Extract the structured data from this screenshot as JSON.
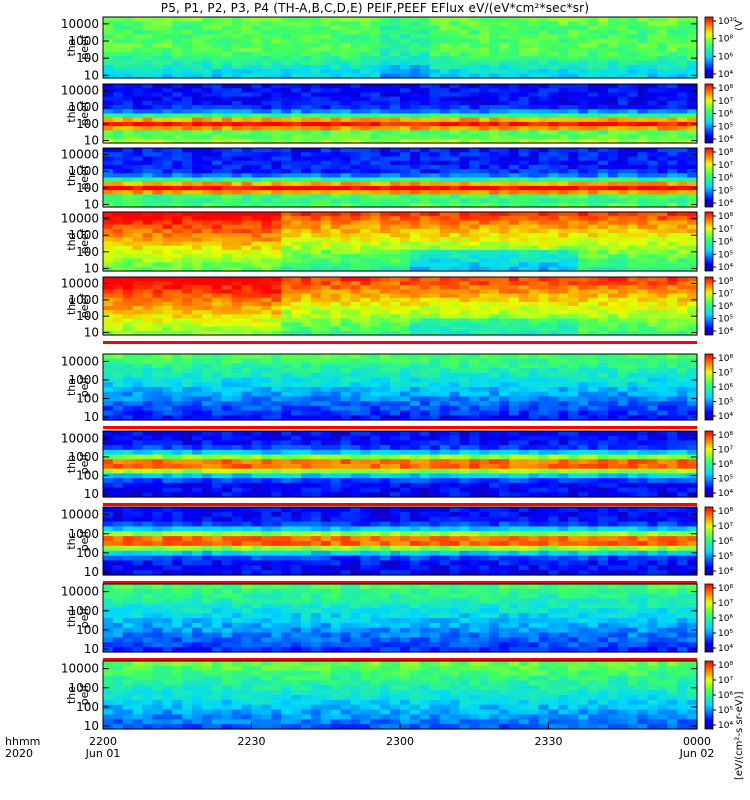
{
  "title": "P5, P1, P2, P3, P4 (TH-A,B,C,D,E) PEIF,PEEF EFlux eV/(eV*cm²*sec*sr)",
  "colorbar_unit_label": "[eV/(cm²-s sr-eV)]",
  "colorbar_unit_label_top": "(V",
  "time_axis": {
    "row_labels": [
      "hhmm",
      "2020"
    ],
    "ticks": [
      {
        "label": "2200",
        "sub": "Jun 01"
      },
      {
        "label": "2230",
        "sub": ""
      },
      {
        "label": "2300",
        "sub": ""
      },
      {
        "label": "2330",
        "sub": ""
      },
      {
        "label": "0000",
        "sub": "Jun 02"
      }
    ]
  },
  "chart_data": [
    {
      "type": "heatmap",
      "panel": "tha peef",
      "ylabel": [
        "tha",
        "peef"
      ],
      "yscale": "log",
      "ylim": [
        7,
        25000
      ],
      "yticks": [
        "10",
        "100",
        "1000",
        "10000"
      ],
      "colorbar": {
        "scale": "log",
        "ticks": [
          "10⁴",
          "10⁶",
          "10⁸",
          "10¹⁰"
        ]
      }
    },
    {
      "type": "heatmap",
      "panel": "thb peef",
      "ylabel": [
        "thb",
        "peef"
      ],
      "yscale": "log",
      "ylim": [
        7,
        25000
      ],
      "yticks": [
        "10",
        "100",
        "1000",
        "10000"
      ],
      "colorbar": {
        "scale": "log",
        "ticks": [
          "10⁴",
          "10⁵",
          "10⁶",
          "10⁷",
          "10⁸"
        ]
      }
    },
    {
      "type": "heatmap",
      "panel": "thc peef",
      "ylabel": [
        "thc",
        "peef"
      ],
      "yscale": "log",
      "ylim": [
        7,
        25000
      ],
      "yticks": [
        "10",
        "100",
        "1000",
        "10000"
      ],
      "colorbar": {
        "scale": "log",
        "ticks": [
          "10⁴",
          "10⁵",
          "10⁶",
          "10⁷",
          "10⁸"
        ]
      }
    },
    {
      "type": "heatmap",
      "panel": "thd peef",
      "ylabel": [
        "thd",
        "peef"
      ],
      "yscale": "log",
      "ylim": [
        7,
        25000
      ],
      "yticks": [
        "10",
        "100",
        "1000",
        "10000"
      ],
      "colorbar": {
        "scale": "log",
        "ticks": [
          "10⁴",
          "10⁵",
          "10⁶",
          "10⁷",
          "10⁸"
        ]
      }
    },
    {
      "type": "heatmap",
      "panel": "the peef",
      "ylabel": [
        "the",
        "peef"
      ],
      "yscale": "log",
      "ylim": [
        7,
        25000
      ],
      "yticks": [
        "10",
        "100",
        "1000",
        "10000"
      ],
      "colorbar": {
        "scale": "log",
        "ticks": [
          "10⁴",
          "10⁵",
          "10⁶",
          "10⁷",
          "10⁸"
        ]
      }
    },
    {
      "type": "heatmap",
      "panel": "tha peif",
      "ylabel": [
        "tha",
        "peif"
      ],
      "yscale": "log",
      "ylim": [
        7,
        25000
      ],
      "yticks": [
        "10",
        "100",
        "1000",
        "10000"
      ],
      "colorbar": {
        "scale": "log",
        "ticks": [
          "10⁴",
          "10⁵",
          "10⁶",
          "10⁷",
          "10⁸"
        ]
      }
    },
    {
      "type": "heatmap",
      "panel": "thb peif",
      "ylabel": [
        "thb",
        "peif"
      ],
      "yscale": "log",
      "ylim": [
        7,
        25000
      ],
      "yticks": [
        "10",
        "100",
        "1000",
        "10000"
      ],
      "colorbar": {
        "scale": "log",
        "ticks": [
          "10⁴",
          "10⁵",
          "10⁶",
          "10⁷",
          "10⁸"
        ]
      }
    },
    {
      "type": "heatmap",
      "panel": "thc peif",
      "ylabel": [
        "thc",
        "peif"
      ],
      "yscale": "log",
      "ylim": [
        7,
        25000
      ],
      "yticks": [
        "10",
        "100",
        "1000",
        "10000"
      ],
      "colorbar": {
        "scale": "log",
        "ticks": [
          "10⁴",
          "10⁵",
          "10⁶",
          "10⁷",
          "10⁸"
        ]
      }
    },
    {
      "type": "heatmap",
      "panel": "thd peif",
      "ylabel": [
        "thd",
        "peif"
      ],
      "yscale": "log",
      "ylim": [
        7,
        25000
      ],
      "yticks": [
        "10",
        "100",
        "1000",
        "10000"
      ],
      "colorbar": {
        "scale": "log",
        "ticks": [
          "10⁴",
          "10⁵",
          "10⁶",
          "10⁷",
          "10⁸"
        ]
      }
    },
    {
      "type": "heatmap",
      "panel": "the peif",
      "ylabel": [
        "the",
        "peif"
      ],
      "yscale": "log",
      "ylim": [
        7,
        25000
      ],
      "yticks": [
        "10",
        "100",
        "1000",
        "10000"
      ],
      "colorbar": {
        "scale": "log",
        "ticks": [
          "10⁴",
          "10⁵",
          "10⁶",
          "10⁷",
          "10⁸"
        ]
      }
    }
  ]
}
